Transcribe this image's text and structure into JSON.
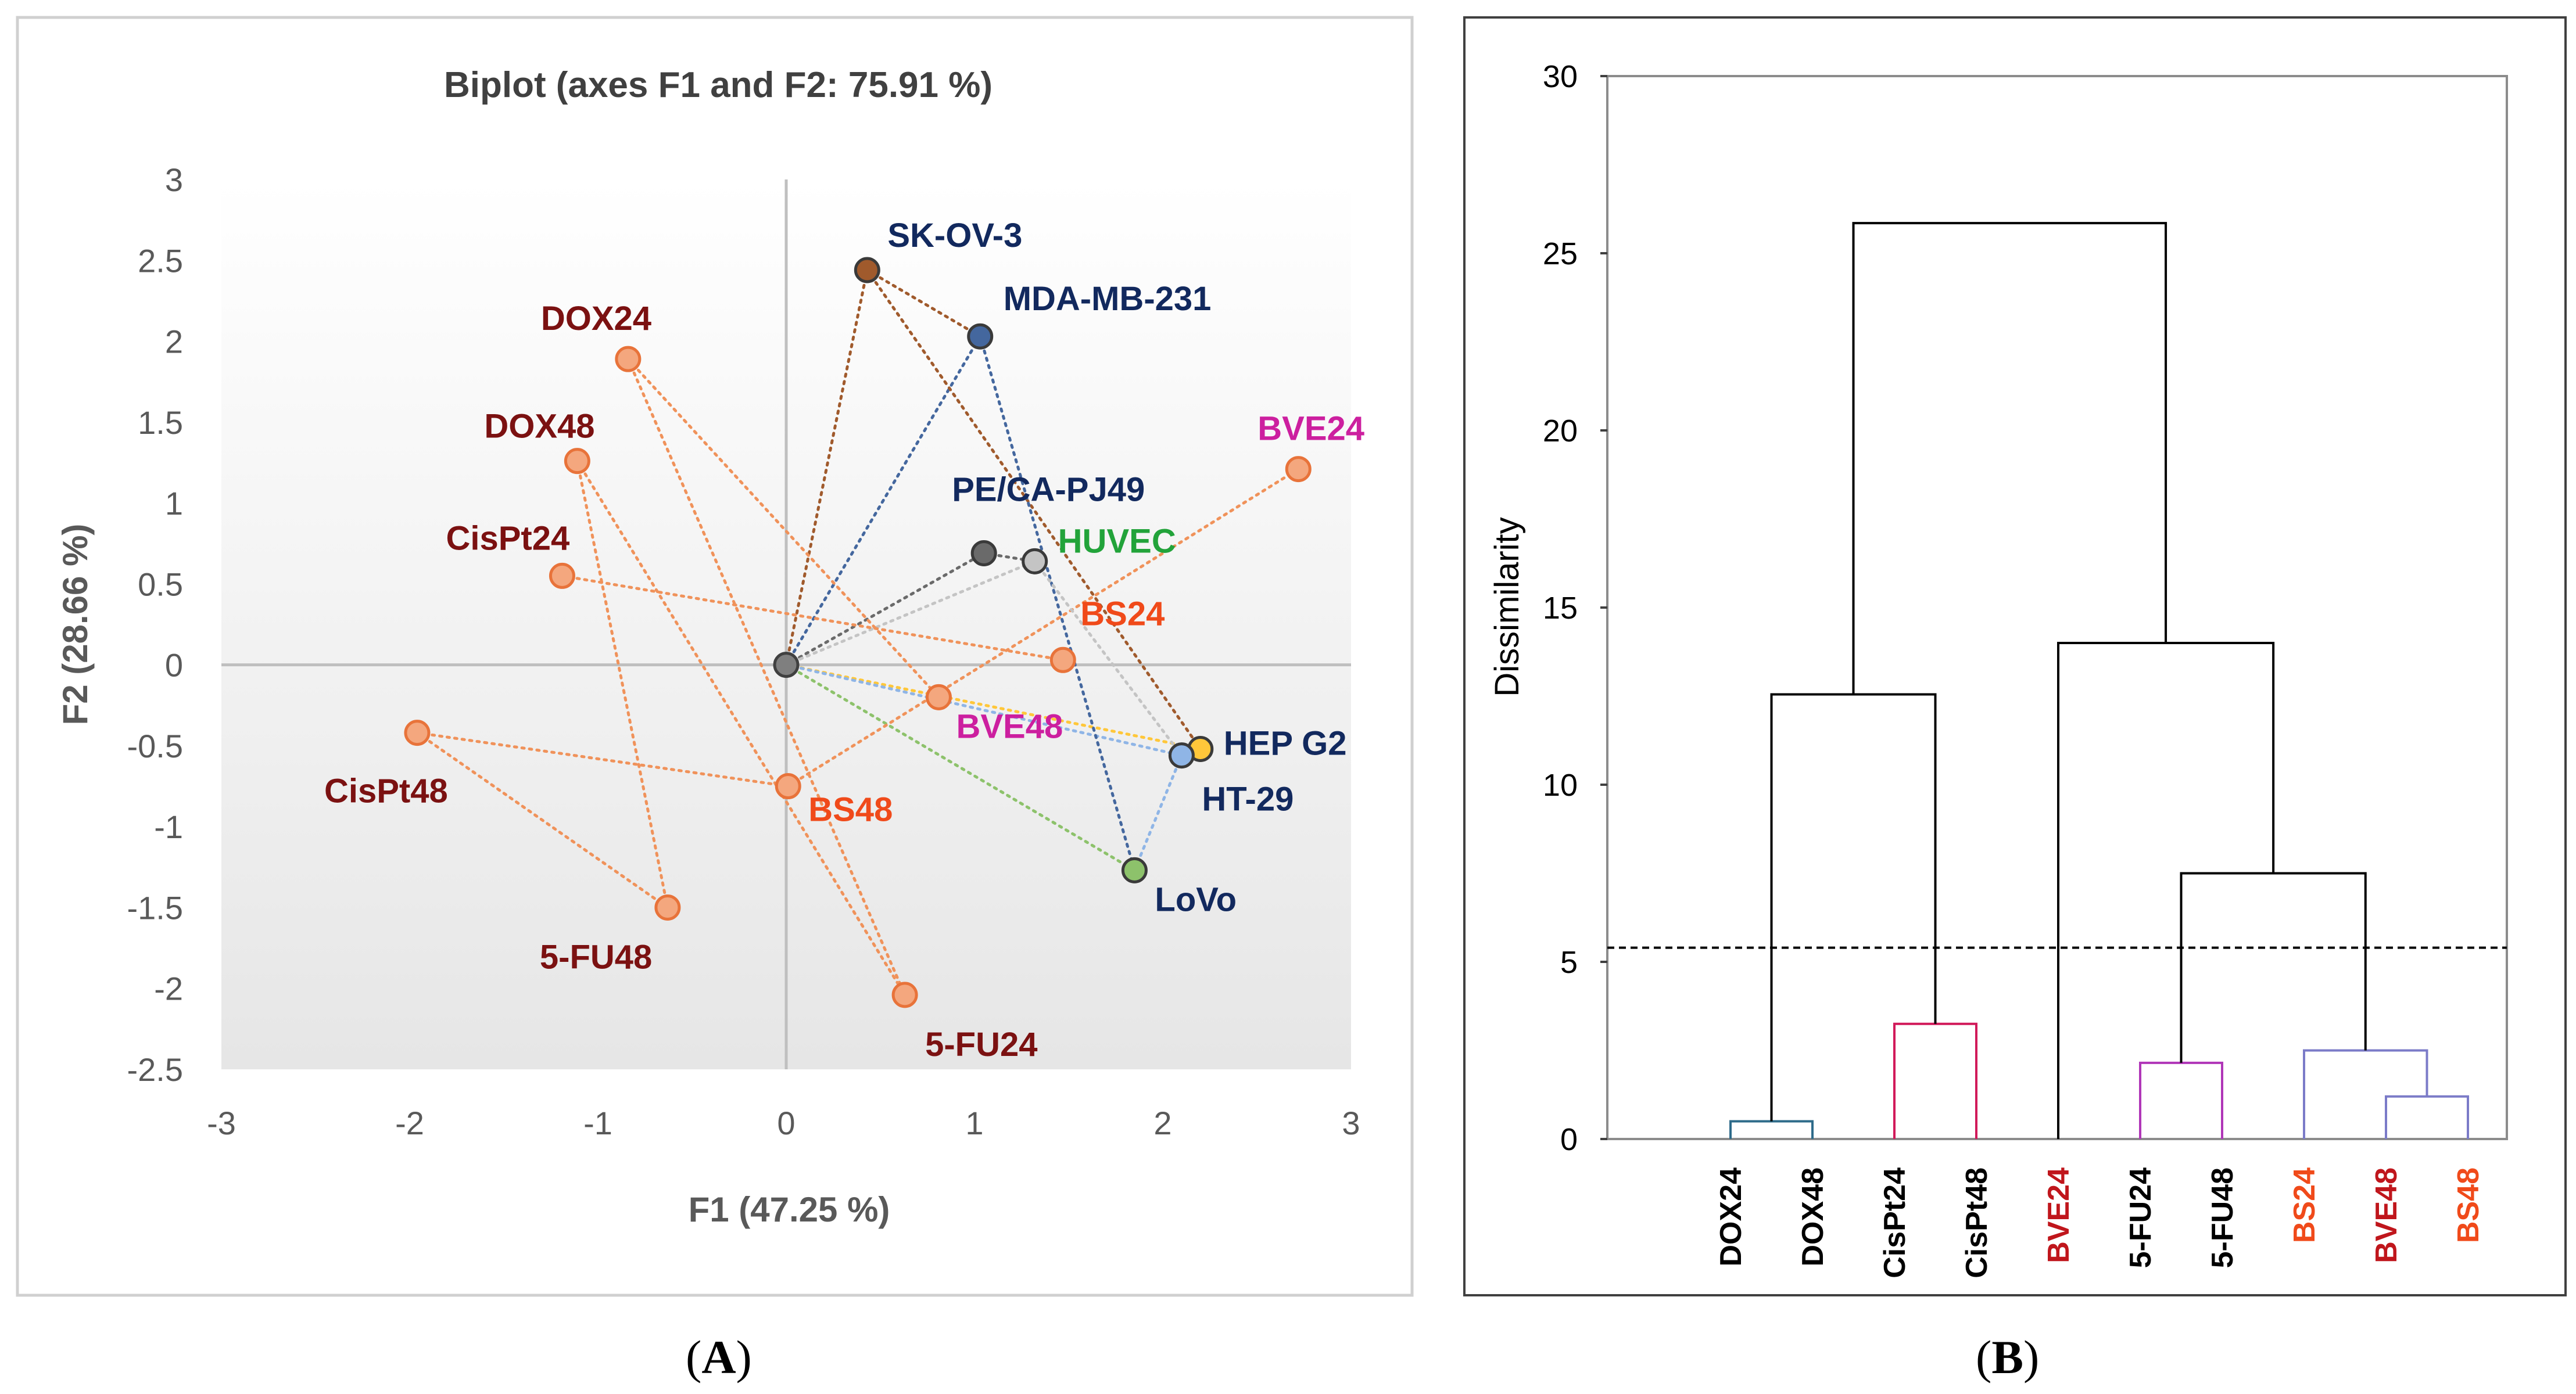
{
  "panels": {
    "a_label": "(A)",
    "b_label": "(B)",
    "a_letter": "A",
    "b_letter": "B"
  },
  "chart_data": [
    {
      "type": "scatter",
      "subtype": "biplot",
      "title": "Biplot (axes F1 and F2: 75.91 %)",
      "xlabel": "F1 (47.25 %)",
      "ylabel": "F2 (28.66 %)",
      "xlim": [
        -3,
        3
      ],
      "ylim": [
        -2.5,
        3
      ],
      "xticks": [
        "-3",
        "-2",
        "-1",
        "0",
        "1",
        "2",
        "3"
      ],
      "yticks": [
        "3",
        "2.5",
        "2",
        "1.5",
        "1",
        "0.5",
        "0",
        "-0.5",
        "-1",
        "-1.5",
        "-2",
        "-2.5"
      ],
      "origin": {
        "x": 0,
        "y": 0,
        "color": "#7f7f7f"
      },
      "observations": [
        {
          "name": "DOX24",
          "x": -0.84,
          "y": 1.89,
          "label_color": "#7b1111"
        },
        {
          "name": "DOX48",
          "x": -1.11,
          "y": 1.26,
          "label_color": "#7b1111"
        },
        {
          "name": "CisPt24",
          "x": -1.19,
          "y": 0.55,
          "label_color": "#7b1111"
        },
        {
          "name": "CisPt48",
          "x": -1.96,
          "y": -0.42,
          "label_color": "#7b1111"
        },
        {
          "name": "5-FU48",
          "x": -0.63,
          "y": -1.5,
          "label_color": "#7b1111"
        },
        {
          "name": "5-FU24",
          "x": 0.63,
          "y": -2.04,
          "label_color": "#7b1111"
        },
        {
          "name": "BS48",
          "x": 0.01,
          "y": -0.75,
          "label_color": "#f04a1a"
        },
        {
          "name": "BVE48",
          "x": 0.81,
          "y": -0.2,
          "label_color": "#cc1f9f"
        },
        {
          "name": "BS24",
          "x": 1.47,
          "y": 0.03,
          "label_color": "#f04a1a"
        },
        {
          "name": "BVE24",
          "x": 2.72,
          "y": 1.21,
          "label_color": "#cc1f9f"
        }
      ],
      "variables": [
        {
          "name": "SK-OV-3",
          "x": 0.43,
          "y": 2.44,
          "color": "#a05a2c",
          "label_color": "#12295e"
        },
        {
          "name": "MDA-MB-231",
          "x": 1.03,
          "y": 2.03,
          "color": "#44679e",
          "label_color": "#12295e"
        },
        {
          "name": "PE/CA-PJ49",
          "x": 1.05,
          "y": 0.69,
          "color": "#6a6a6a",
          "label_color": "#12295e"
        },
        {
          "name": "HUVEC",
          "x": 1.32,
          "y": 0.64,
          "color": "#c4c4c4",
          "label_color": "#22a33a"
        },
        {
          "name": "HEP G2",
          "x": 2.2,
          "y": -0.52,
          "color": "#ffc73a",
          "label_color": "#12295e"
        },
        {
          "name": "HT-29",
          "x": 2.1,
          "y": -0.56,
          "color": "#8fb5e6",
          "label_color": "#12295e"
        },
        {
          "name": "LoVo",
          "x": 1.85,
          "y": -1.27,
          "color": "#8dc26b",
          "label_color": "#12295e"
        }
      ],
      "connector_lines": [
        {
          "from": "DOX24",
          "to": "BVE48"
        },
        {
          "from": "DOX24",
          "to": "5-FU24"
        },
        {
          "from": "DOX48",
          "to": "5-FU48"
        },
        {
          "from": "DOX48",
          "to": "5-FU24"
        },
        {
          "from": "CisPt24",
          "to": "BS24"
        },
        {
          "from": "CisPt48",
          "to": "BS48"
        },
        {
          "from": "CisPt48",
          "to": "5-FU48"
        },
        {
          "from": "BS48",
          "to": "BVE24"
        },
        {
          "from": "SK-OV-3",
          "to": "MDA-MB-231"
        },
        {
          "from": "SK-OV-3",
          "to": "HEP G2"
        },
        {
          "from": "MDA-MB-231",
          "to": "LoVo"
        },
        {
          "from": "PE/CA-PJ49",
          "to": "HUVEC"
        },
        {
          "from": "HUVEC",
          "to": "HT-29"
        },
        {
          "from": "HT-29",
          "to": "LoVo"
        }
      ],
      "vectors_from_origin": [
        "SK-OV-3",
        "MDA-MB-231",
        "PE/CA-PJ49",
        "HUVEC",
        "HEP G2",
        "HT-29",
        "LoVo"
      ],
      "series_colors": {
        "observation_fill": "#f4a77e",
        "observation_stroke": "#e8733a",
        "connector": "#f0925a"
      }
    },
    {
      "type": "dendrogram",
      "ylabel": "Dissimilarity",
      "ylim": [
        0,
        30
      ],
      "yticks": [
        "0",
        "5",
        "10",
        "15",
        "20",
        "25",
        "30"
      ],
      "truncation_line": 5.4,
      "leaves": [
        {
          "name": "DOX24",
          "color": "#000000"
        },
        {
          "name": "DOX48",
          "color": "#000000"
        },
        {
          "name": "CisPt24",
          "color": "#000000"
        },
        {
          "name": "CisPt48",
          "color": "#000000"
        },
        {
          "name": "BVE24",
          "color": "#c0161c"
        },
        {
          "name": "5-FU24",
          "color": "#000000"
        },
        {
          "name": "5-FU48",
          "color": "#000000"
        },
        {
          "name": "BS24",
          "color": "#f04a1a"
        },
        {
          "name": "BVE48",
          "color": "#c0161c"
        },
        {
          "name": "BS48",
          "color": "#f04a1a"
        }
      ],
      "merges": [
        {
          "left": "L0",
          "right": "L1",
          "height": 0.5,
          "color": "#2e6b8a"
        },
        {
          "left": "L2",
          "right": "L3",
          "height": 3.25,
          "color": "#d11a5a"
        },
        {
          "left": "L5",
          "right": "L6",
          "height": 2.15,
          "color": "#b036b8"
        },
        {
          "left": "L8",
          "right": "L9",
          "height": 1.2,
          "color": "#7b7bc8"
        },
        {
          "left": "L7",
          "right": "M3",
          "height": 2.5,
          "color": "#7b7bc8"
        },
        {
          "left": "M0",
          "right": "M1",
          "height": 12.55,
          "color": "#000000"
        },
        {
          "left": "M2",
          "right": "M4",
          "height": 7.5,
          "color": "#000000"
        },
        {
          "left": "L4",
          "right": "M6",
          "height": 14.0,
          "color": "#000000"
        },
        {
          "left": "M5",
          "right": "M7",
          "height": 25.85,
          "color": "#000000"
        }
      ]
    }
  ]
}
